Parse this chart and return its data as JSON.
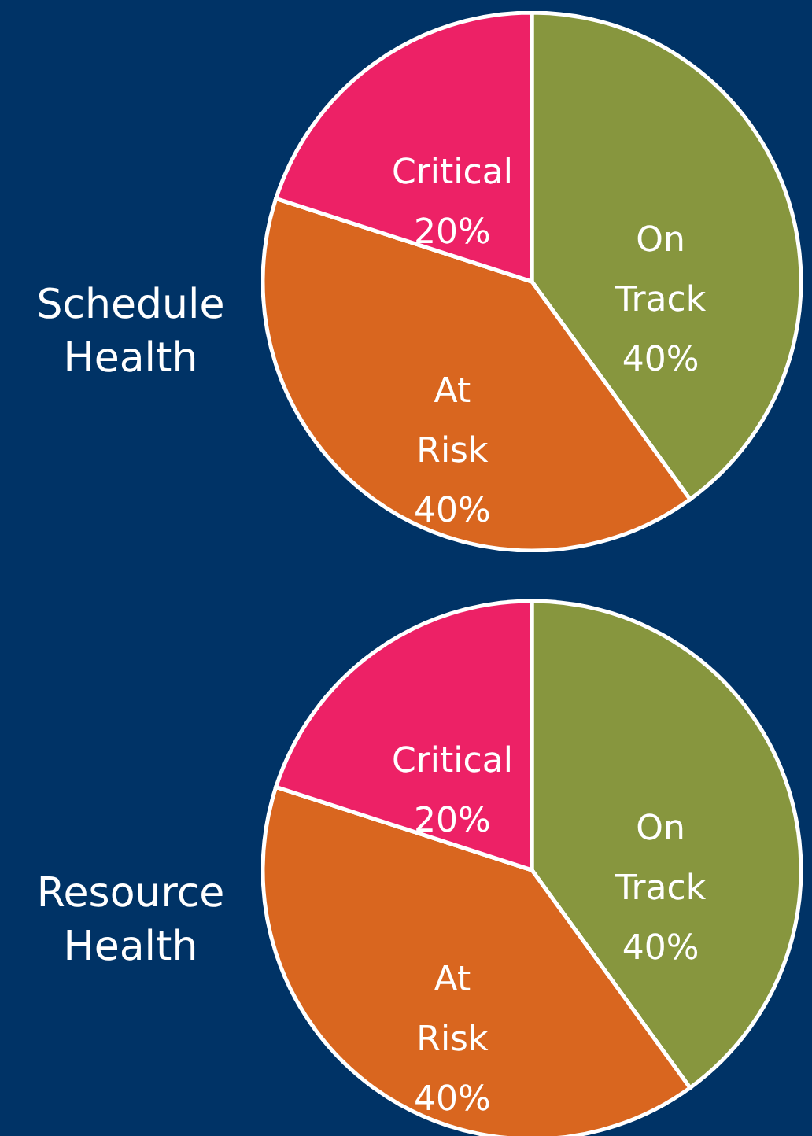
{
  "chart_data": [
    {
      "type": "pie",
      "title": "Schedule Health",
      "categories": [
        "On Track",
        "At Risk",
        "Critical"
      ],
      "values": [
        40,
        40,
        20
      ],
      "colors": [
        "#87963e",
        "#d9661f",
        "#ed2166"
      ],
      "value_labels": [
        "40%",
        "40%",
        "20%"
      ]
    },
    {
      "type": "pie",
      "title": "Resource Health",
      "categories": [
        "On Track",
        "At Risk",
        "Critical"
      ],
      "values": [
        40,
        40,
        20
      ],
      "colors": [
        "#87963e",
        "#d9661f",
        "#ed2166"
      ],
      "value_labels": [
        "40%",
        "40%",
        "20%"
      ]
    }
  ]
}
